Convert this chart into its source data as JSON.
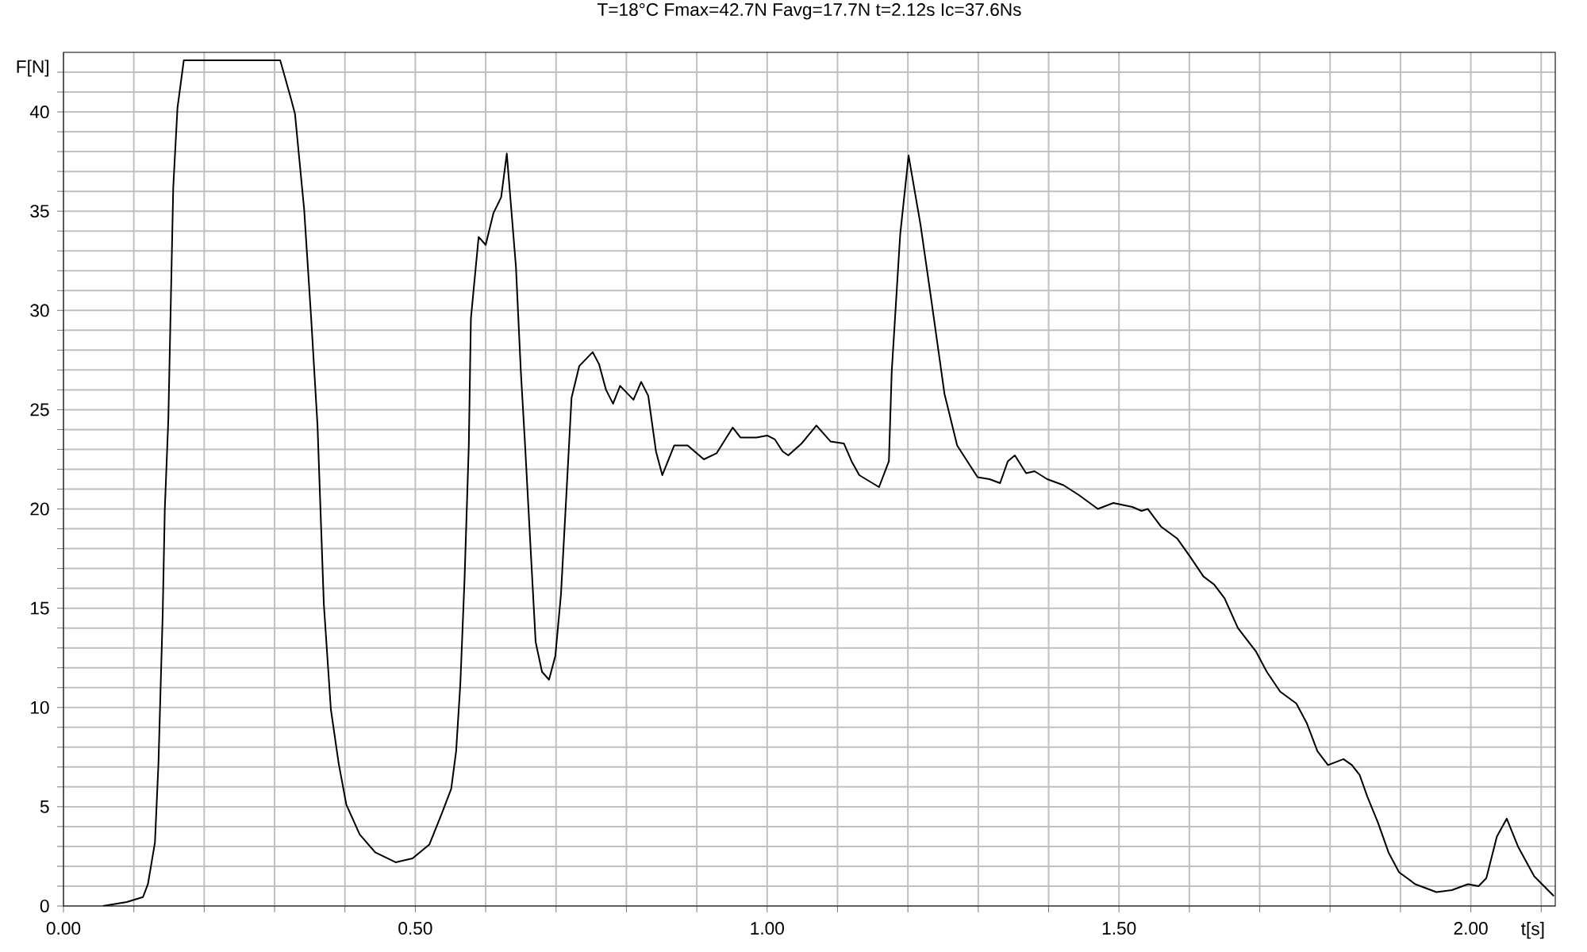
{
  "chart_data": {
    "type": "line",
    "title": "T=18°C   Fmax=42.7N   Favg=17.7N   t=2.12s   Ic=37.6Ns",
    "xlabel": "t[s]",
    "ylabel": "F[N]",
    "color": "#000000",
    "grid": true,
    "xlim": [
      0,
      2.12
    ],
    "ylim": [
      0,
      43
    ],
    "xticks": [
      {
        "value": 0,
        "label": "0.00"
      },
      {
        "value": 0.1,
        "label": null
      },
      {
        "value": 0.2,
        "label": null
      },
      {
        "value": 0.3,
        "label": null
      },
      {
        "value": 0.4,
        "label": null
      },
      {
        "value": 0.5,
        "label": "0.50"
      },
      {
        "value": 0.6,
        "label": null
      },
      {
        "value": 0.7,
        "label": null
      },
      {
        "value": 0.8,
        "label": null
      },
      {
        "value": 0.9,
        "label": null
      },
      {
        "value": 1.0,
        "label": "1.00"
      },
      {
        "value": 1.1,
        "label": null
      },
      {
        "value": 1.2,
        "label": null
      },
      {
        "value": 1.3,
        "label": null
      },
      {
        "value": 1.4,
        "label": null
      },
      {
        "value": 1.5,
        "label": "1.50"
      },
      {
        "value": 1.6,
        "label": null
      },
      {
        "value": 1.7,
        "label": null
      },
      {
        "value": 1.8,
        "label": null
      },
      {
        "value": 1.9,
        "label": null
      },
      {
        "value": 2.0,
        "label": "2.00"
      },
      {
        "value": 2.1,
        "label": null
      }
    ],
    "yticks": [
      0,
      {
        "value": 1,
        "label": null
      },
      {
        "value": 2,
        "label": null
      },
      {
        "value": 3,
        "label": null
      },
      {
        "value": 4,
        "label": null
      },
      5,
      {
        "value": 6,
        "label": null
      },
      {
        "value": 7,
        "label": null
      },
      {
        "value": 8,
        "label": null
      },
      {
        "value": 9,
        "label": null
      },
      10,
      {
        "value": 11,
        "label": null
      },
      {
        "value": 12,
        "label": null
      },
      {
        "value": 13,
        "label": null
      },
      {
        "value": 14,
        "label": null
      },
      15,
      {
        "value": 16,
        "label": null
      },
      {
        "value": 17,
        "label": null
      },
      {
        "value": 18,
        "label": null
      },
      {
        "value": 19,
        "label": null
      },
      20,
      {
        "value": 21,
        "label": null
      },
      {
        "value": 22,
        "label": null
      },
      {
        "value": 23,
        "label": null
      },
      {
        "value": 24,
        "label": null
      },
      25,
      {
        "value": 26,
        "label": null
      },
      {
        "value": 27,
        "label": null
      },
      {
        "value": 28,
        "label": null
      },
      {
        "value": 29,
        "label": null
      },
      30,
      {
        "value": 31,
        "label": null
      },
      {
        "value": 32,
        "label": null
      },
      {
        "value": 33,
        "label": null
      },
      {
        "value": 34,
        "label": null
      },
      35,
      {
        "value": 36,
        "label": null
      },
      {
        "value": 37,
        "label": null
      },
      {
        "value": 38,
        "label": null
      },
      {
        "value": 39,
        "label": null
      },
      40,
      {
        "value": 41,
        "label": null
      },
      {
        "value": 42,
        "label": null
      }
    ],
    "x": [
      0.056,
      0.09,
      0.113,
      0.12,
      0.13,
      0.135,
      0.141,
      0.144,
      0.149,
      0.156,
      0.162,
      0.171,
      0.308,
      0.323,
      0.329,
      0.342,
      0.352,
      0.361,
      0.37,
      0.38,
      0.391,
      0.402,
      0.421,
      0.443,
      0.472,
      0.496,
      0.52,
      0.537,
      0.551,
      0.558,
      0.564,
      0.57,
      0.576,
      0.579,
      0.59,
      0.6,
      0.611,
      0.622,
      0.63,
      0.635,
      0.643,
      0.65,
      0.656,
      0.664,
      0.671,
      0.68,
      0.69,
      0.699,
      0.707,
      0.716,
      0.722,
      0.733,
      0.752,
      0.761,
      0.771,
      0.781,
      0.791,
      0.81,
      0.821,
      0.831,
      0.842,
      0.851,
      0.868,
      0.887,
      0.91,
      0.928,
      0.951,
      0.962,
      0.985,
      1.0,
      1.011,
      1.022,
      1.03,
      1.049,
      1.07,
      1.09,
      1.109,
      1.12,
      1.131,
      1.159,
      1.173,
      1.177,
      1.189,
      1.201,
      1.218,
      1.233,
      1.252,
      1.27,
      1.299,
      1.316,
      1.331,
      1.342,
      1.352,
      1.368,
      1.38,
      1.398,
      1.421,
      1.443,
      1.47,
      1.492,
      1.519,
      1.532,
      1.541,
      1.56,
      1.583,
      1.601,
      1.62,
      1.635,
      1.65,
      1.669,
      1.695,
      1.71,
      1.729,
      1.752,
      1.767,
      1.782,
      1.797,
      1.819,
      1.831,
      1.842,
      1.853,
      1.868,
      1.883,
      1.898,
      1.921,
      1.951,
      1.973,
      1.996,
      2.011,
      2.022,
      2.037,
      2.051,
      2.067,
      2.09,
      2.118
    ],
    "values": [
      0,
      0.2,
      0.45,
      1.1,
      3.2,
      7.2,
      14.7,
      20,
      24.5,
      36.2,
      40.2,
      42.6,
      42.6,
      40.7,
      39.9,
      35.1,
      29.6,
      24.2,
      15.2,
      9.9,
      7.2,
      5.1,
      3.6,
      2.7,
      2.2,
      2.4,
      3.1,
      4.6,
      5.9,
      7.8,
      11.2,
      16.5,
      23.2,
      29.6,
      33.7,
      33.3,
      34.9,
      35.7,
      37.9,
      35.7,
      32.2,
      26.9,
      23.2,
      17.9,
      13.3,
      11.8,
      11.4,
      12.6,
      15.7,
      21.6,
      25.6,
      27.2,
      27.9,
      27.3,
      26.0,
      25.3,
      26.2,
      25.5,
      26.4,
      25.7,
      22.9,
      21.7,
      23.2,
      23.2,
      22.5,
      22.8,
      24.1,
      23.6,
      23.6,
      23.7,
      23.5,
      22.9,
      22.7,
      23.3,
      24.2,
      23.4,
      23.3,
      22.4,
      21.7,
      21.1,
      22.4,
      26.9,
      33.8,
      37.8,
      34.3,
      30.6,
      25.8,
      23.2,
      21.6,
      21.5,
      21.3,
      22.4,
      22.7,
      21.8,
      21.9,
      21.5,
      21.2,
      20.7,
      20.0,
      20.3,
      20.1,
      19.9,
      20.0,
      19.1,
      18.5,
      17.6,
      16.6,
      16.2,
      15.5,
      14.0,
      12.8,
      11.8,
      10.8,
      10.2,
      9.2,
      7.8,
      7.1,
      7.4,
      7.1,
      6.6,
      5.5,
      4.2,
      2.7,
      1.7,
      1.1,
      0.7,
      0.8,
      1.1,
      1.0,
      1.4,
      3.5,
      4.4,
      3.0,
      1.5,
      0.5
    ]
  }
}
